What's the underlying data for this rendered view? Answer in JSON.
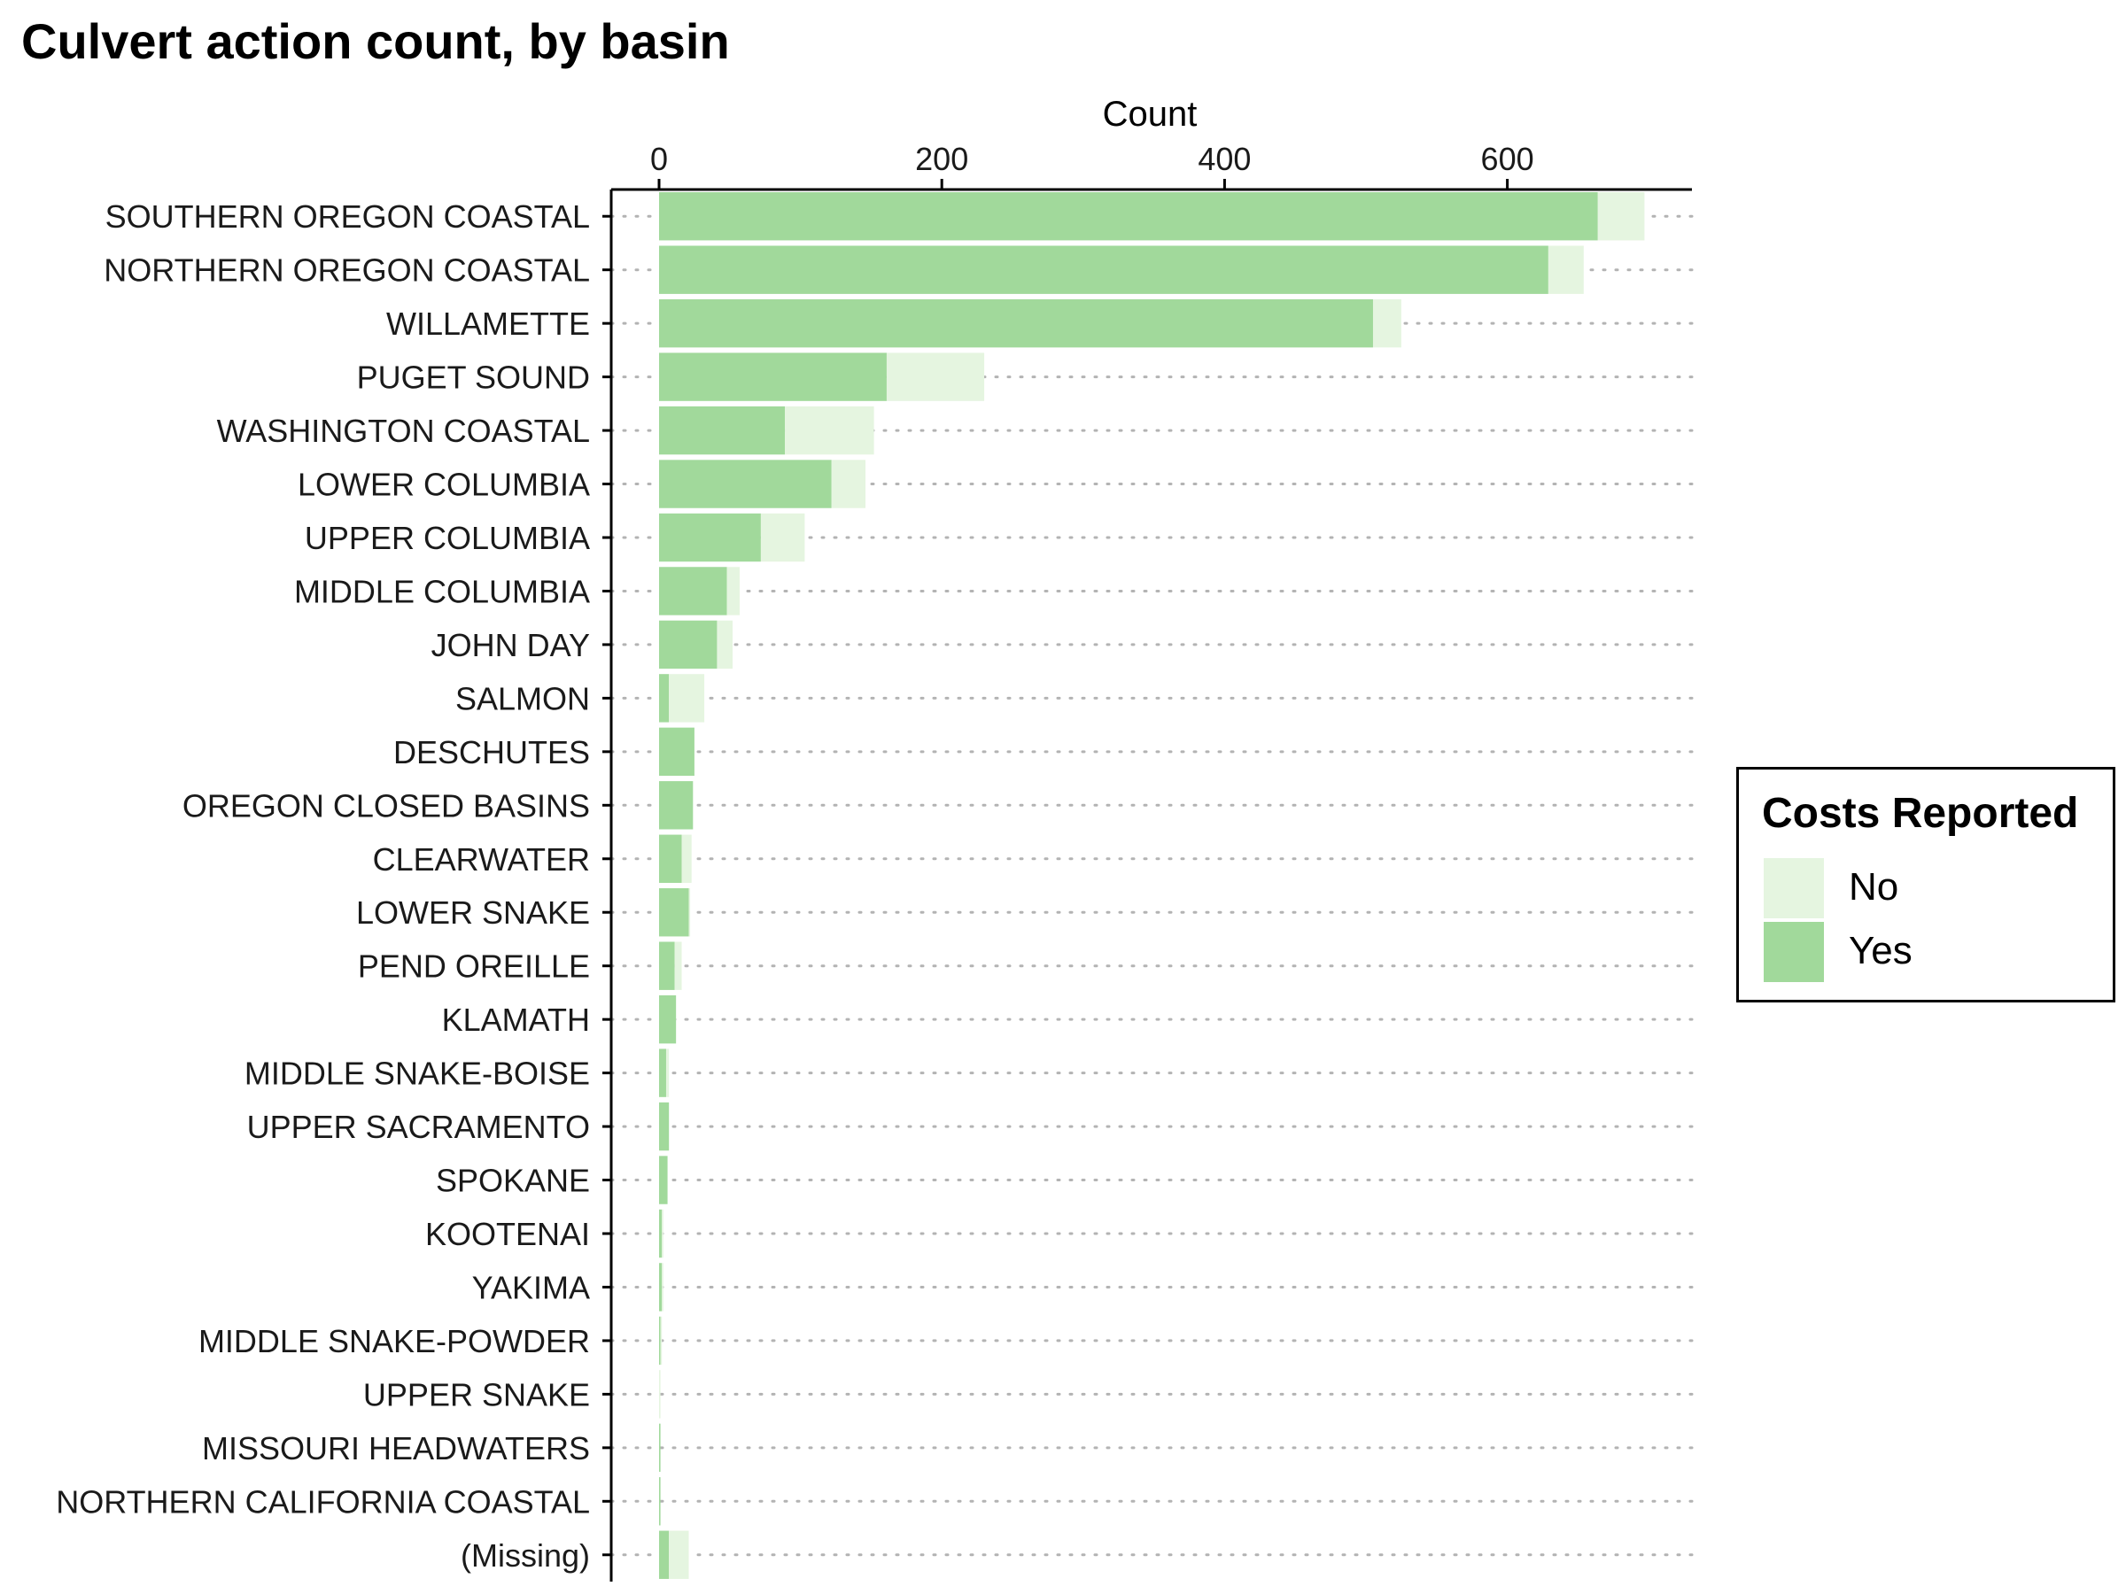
{
  "chart_data": {
    "type": "bar",
    "orientation": "horizontal",
    "stacked": true,
    "title": "Culvert action count, by basin",
    "xlabel": "Count",
    "ylabel": "",
    "xlim": [
      -35,
      725
    ],
    "xticks": [
      0,
      200,
      400,
      600
    ],
    "grid": "dotted horizontal",
    "legend_position": "right",
    "legend_title": "Costs Reported",
    "categories": [
      "SOUTHERN OREGON COASTAL",
      "NORTHERN OREGON COASTAL",
      "WILLAMETTE",
      "PUGET SOUND",
      "WASHINGTON COASTAL",
      "LOWER COLUMBIA",
      "UPPER COLUMBIA",
      "MIDDLE COLUMBIA",
      "JOHN DAY",
      "SALMON",
      "DESCHUTES",
      "OREGON CLOSED BASINS",
      "CLEARWATER",
      "LOWER SNAKE",
      "PEND OREILLE",
      "KLAMATH",
      "MIDDLE SNAKE-BOISE",
      "UPPER SACRAMENTO",
      "SPOKANE",
      "KOOTENAI",
      "YAKIMA",
      "MIDDLE SNAKE-POWDER",
      "UPPER SNAKE",
      "MISSOURI HEADWATERS",
      "NORTHERN CALIFORNIA COASTAL",
      "(Missing)"
    ],
    "series": [
      {
        "name": "Yes",
        "color": "#a1d99b",
        "values": [
          664,
          629,
          505,
          161,
          89,
          122,
          72,
          48,
          41,
          7,
          25,
          24,
          16,
          21,
          11,
          12,
          5,
          7,
          6,
          2,
          2,
          1,
          0,
          1,
          1,
          7
        ]
      },
      {
        "name": "No",
        "color": "#e5f5e0",
        "values": [
          33,
          25,
          20,
          69,
          63,
          24,
          31,
          9,
          11,
          25,
          0,
          0,
          7,
          1,
          5,
          0,
          2,
          0,
          0,
          1,
          1,
          1,
          1,
          0,
          0,
          14
        ]
      }
    ]
  },
  "legend": {
    "title": "Costs Reported",
    "items": [
      {
        "label": "No",
        "color": "#e5f5e0"
      },
      {
        "label": "Yes",
        "color": "#a1d99b"
      }
    ]
  }
}
